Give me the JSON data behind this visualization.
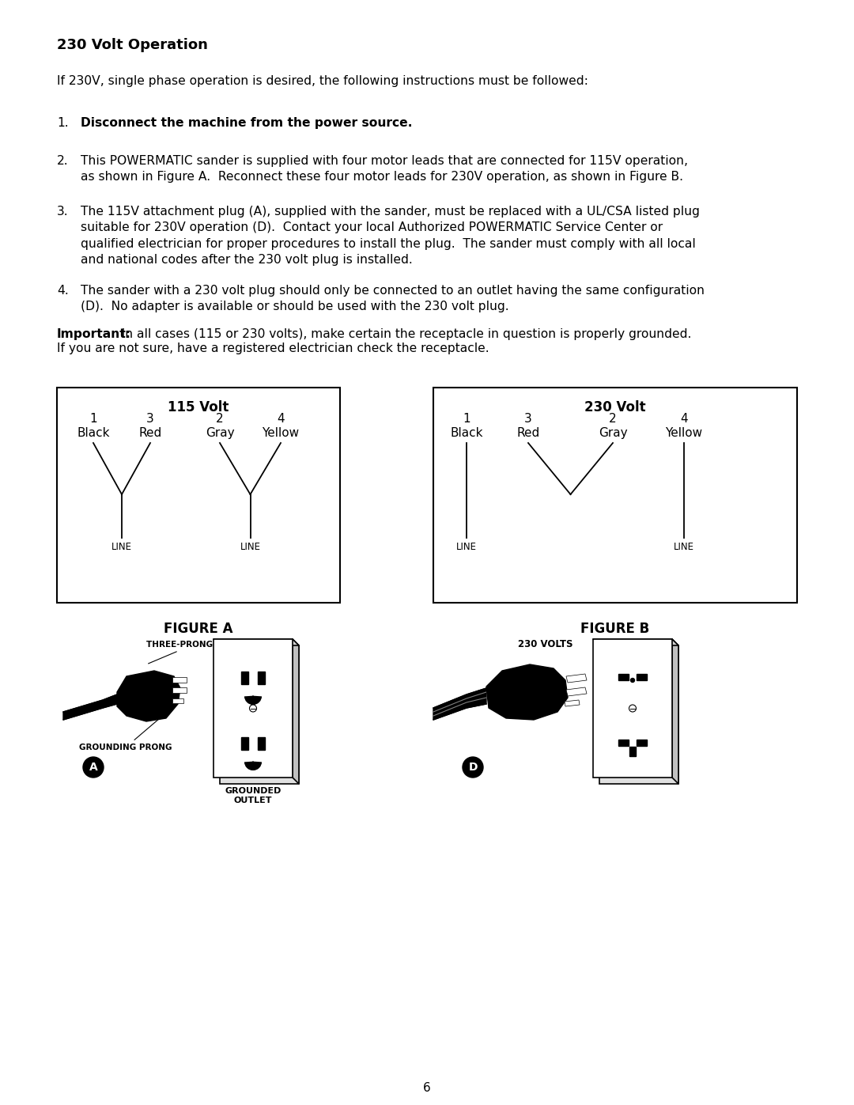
{
  "bg_color": "#ffffff",
  "text_color": "#000000",
  "title": "230 Volt Operation",
  "intro": "If 230V, single phase operation is desired, the following instructions must be followed:",
  "item1_bold": "Disconnect the machine from the power source.",
  "item2": "This POWERMATIC sander is supplied with four motor leads that are connected for 115V operation,\nas shown in Figure A.  Reconnect these four motor leads for 230V operation, as shown in Figure B.",
  "item3": "The 115V attachment plug (A), supplied with the sander, must be replaced with a UL/CSA listed plug\nsuitable for 230V operation (D).  Contact your local Authorized POWERMATIC Service Center or\nqualified electrician for proper procedures to install the plug.  The sander must comply with all local\nand national codes after the 230 volt plug is installed.",
  "item4": "The sander with a 230 volt plug should only be connected to an outlet having the same configuration\n(D).  No adapter is available or should be used with the 230 volt plug.",
  "important_bold": "Important:",
  "important_rest": "  In all cases (115 or 230 volts), make certain the receptacle in question is properly grounded.\nIf you are not sure, have a registered electrician check the receptacle.",
  "fig_a_title": "115 Volt",
  "fig_b_title": "230 Volt",
  "fig_a_label": "FIGURE A",
  "fig_b_label": "FIGURE B",
  "wire_nums": [
    "1",
    "3",
    "2",
    "4"
  ],
  "wire_labels": [
    "Black",
    "Red",
    "Gray",
    "Yellow"
  ],
  "page_num": "6",
  "lm": 72,
  "rm": 1010,
  "fs_body": 11.2,
  "fs_title": 13.0
}
